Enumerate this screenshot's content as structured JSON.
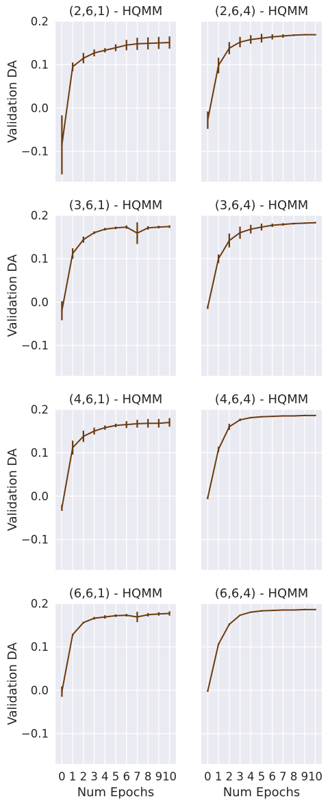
{
  "figure": {
    "xlabel": "Num Epochs",
    "ylabel": "Validation DA"
  },
  "chart_data": [
    {
      "type": "line",
      "title": "(2,6,1) - HQMM",
      "xlabel": "",
      "ylabel": "Validation DA",
      "ylim": [
        -0.17,
        0.2
      ],
      "x": [
        0,
        1,
        2,
        3,
        4,
        5,
        6,
        7,
        8,
        9,
        10
      ],
      "yticks": [
        -0.1,
        0.0,
        0.1,
        0.2
      ],
      "xticks": [],
      "grid": true,
      "color": "#6b3a0e",
      "series": [
        {
          "values": [
            -0.085,
            0.095,
            0.115,
            0.127,
            0.133,
            0.139,
            0.145,
            0.148,
            0.149,
            0.15,
            0.151
          ],
          "err": [
            0.068,
            0.01,
            0.012,
            0.008,
            0.005,
            0.008,
            0.012,
            0.014,
            0.014,
            0.014,
            0.014
          ]
        }
      ]
    },
    {
      "type": "line",
      "title": "(2,6,4) - HQMM",
      "xlabel": "",
      "ylabel": "",
      "ylim": [
        -0.17,
        0.2
      ],
      "x": [
        0,
        1,
        2,
        3,
        4,
        5,
        6,
        7,
        8,
        9,
        10
      ],
      "yticks": [],
      "xticks": [],
      "grid": true,
      "color": "#6b3a0e",
      "series": [
        {
          "values": [
            -0.028,
            0.098,
            0.138,
            0.152,
            0.158,
            0.161,
            0.164,
            0.166,
            0.168,
            0.169,
            0.169
          ],
          "err": [
            0.02,
            0.018,
            0.014,
            0.012,
            0.01,
            0.01,
            0.006,
            0.004,
            0.002,
            0.001,
            0.001
          ]
        }
      ]
    },
    {
      "type": "line",
      "title": "(3,6,1) - HQMM",
      "xlabel": "",
      "ylabel": "Validation DA",
      "ylim": [
        -0.17,
        0.2
      ],
      "x": [
        0,
        1,
        2,
        3,
        4,
        5,
        6,
        7,
        8,
        9,
        10
      ],
      "yticks": [
        -0.1,
        0.0,
        0.1,
        0.2
      ],
      "xticks": [],
      "grid": true,
      "color": "#6b3a0e",
      "series": [
        {
          "values": [
            -0.02,
            0.112,
            0.144,
            0.16,
            0.168,
            0.171,
            0.173,
            0.159,
            0.171,
            0.173,
            0.174
          ],
          "err": [
            0.022,
            0.012,
            0.007,
            0.003,
            0.003,
            0.003,
            0.004,
            0.025,
            0.004,
            0.003,
            0.003
          ]
        }
      ]
    },
    {
      "type": "line",
      "title": "(3,6,4) - HQMM",
      "xlabel": "",
      "ylabel": "",
      "ylim": [
        -0.17,
        0.2
      ],
      "x": [
        0,
        1,
        2,
        3,
        4,
        5,
        6,
        7,
        8,
        9,
        10
      ],
      "yticks": [],
      "xticks": [],
      "grid": true,
      "color": "#6b3a0e",
      "series": [
        {
          "values": [
            -0.012,
            0.1,
            0.142,
            0.16,
            0.168,
            0.173,
            0.177,
            0.179,
            0.181,
            0.182,
            0.183
          ],
          "err": [
            0.004,
            0.01,
            0.016,
            0.014,
            0.01,
            0.008,
            0.004,
            0.003,
            0.002,
            0.001,
            0.001
          ]
        }
      ]
    },
    {
      "type": "line",
      "title": "(4,6,1) - HQMM",
      "xlabel": "",
      "ylabel": "Validation DA",
      "ylim": [
        -0.17,
        0.2
      ],
      "x": [
        0,
        1,
        2,
        3,
        4,
        5,
        6,
        7,
        8,
        9,
        10
      ],
      "yticks": [
        -0.1,
        0.0,
        0.1,
        0.2
      ],
      "xticks": [],
      "grid": true,
      "color": "#6b3a0e",
      "series": [
        {
          "values": [
            -0.027,
            0.112,
            0.138,
            0.15,
            0.158,
            0.163,
            0.165,
            0.167,
            0.168,
            0.168,
            0.17
          ],
          "err": [
            0.007,
            0.016,
            0.013,
            0.008,
            0.005,
            0.004,
            0.008,
            0.009,
            0.01,
            0.01,
            0.01
          ]
        }
      ]
    },
    {
      "type": "line",
      "title": "(4,6,4) - HQMM",
      "xlabel": "",
      "ylabel": "",
      "ylim": [
        -0.17,
        0.2
      ],
      "x": [
        0,
        1,
        2,
        3,
        4,
        5,
        6,
        7,
        8,
        9,
        10
      ],
      "yticks": [],
      "xticks": [],
      "grid": true,
      "color": "#6b3a0e",
      "series": [
        {
          "values": [
            -0.004,
            0.108,
            0.16,
            0.176,
            0.181,
            0.183,
            0.184,
            0.185,
            0.185,
            0.186,
            0.186
          ],
          "err": [
            0.003,
            0.006,
            0.007,
            0.003,
            0.001,
            0.001,
            0.001,
            0.001,
            0.001,
            0.001,
            0.001
          ]
        }
      ]
    },
    {
      "type": "line",
      "title": "(6,6,1) - HQMM",
      "xlabel": "Num Epochs",
      "ylabel": "Validation DA",
      "ylim": [
        -0.17,
        0.2
      ],
      "x": [
        0,
        1,
        2,
        3,
        4,
        5,
        6,
        7,
        8,
        9,
        10
      ],
      "yticks": [
        -0.1,
        0.0,
        0.1,
        0.2
      ],
      "xticks": [
        "0",
        "1",
        "2",
        "3",
        "4",
        "5",
        "6",
        "7",
        "8",
        "9",
        "10"
      ],
      "grid": true,
      "color": "#6b3a0e",
      "series": [
        {
          "values": [
            -0.003,
            0.128,
            0.156,
            0.166,
            0.169,
            0.172,
            0.173,
            0.169,
            0.174,
            0.176,
            0.177
          ],
          "err": [
            0.012,
            0.002,
            0.002,
            0.003,
            0.004,
            0.003,
            0.003,
            0.012,
            0.004,
            0.004,
            0.005
          ]
        }
      ]
    },
    {
      "type": "line",
      "title": "(6,6,4) - HQMM",
      "xlabel": "Num Epochs",
      "ylabel": "",
      "ylim": [
        -0.17,
        0.2
      ],
      "x": [
        0,
        1,
        2,
        3,
        4,
        5,
        6,
        7,
        8,
        9,
        10
      ],
      "yticks": [],
      "xticks": [
        "0",
        "1",
        "2",
        "3",
        "4",
        "5",
        "6",
        "7",
        "8",
        "9",
        "10"
      ],
      "grid": true,
      "color": "#6b3a0e",
      "series": [
        {
          "values": [
            -0.002,
            0.106,
            0.152,
            0.173,
            0.18,
            0.183,
            0.184,
            0.185,
            0.185,
            0.186,
            0.186
          ],
          "err": [
            0.001,
            0.001,
            0.002,
            0.001,
            0.001,
            0.001,
            0.001,
            0.001,
            0.001,
            0.001,
            0.001
          ]
        }
      ]
    }
  ]
}
